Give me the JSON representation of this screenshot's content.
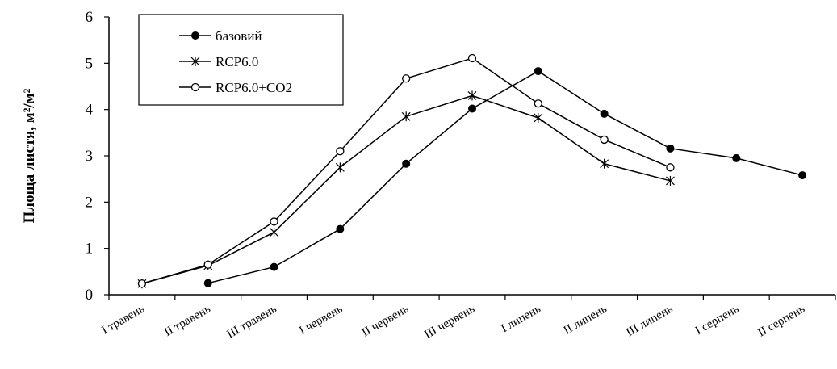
{
  "chart_data": {
    "type": "line",
    "ylabel": "Площа листя, м²/м²",
    "xlabel": "",
    "ylim": [
      0,
      6
    ],
    "yticks": [
      0,
      1,
      2,
      3,
      4,
      5,
      6
    ],
    "grid": false,
    "legend_position": "top-left",
    "categories": [
      "I травень",
      "II травень",
      "III травень",
      "I червень",
      "II червень",
      "III червень",
      "I липень",
      "II липень",
      "III липень",
      "I серпень",
      "II серпень"
    ],
    "series": [
      {
        "name": "базовий",
        "marker": "filled-circle",
        "color": "#000000",
        "values": [
          null,
          0.25,
          0.6,
          1.42,
          2.83,
          4.02,
          4.83,
          3.91,
          3.16,
          2.95,
          2.58
        ]
      },
      {
        "name": "RCP6.0",
        "marker": "asterisk",
        "color": "#000000",
        "values": [
          0.24,
          0.63,
          1.35,
          2.75,
          3.85,
          4.3,
          3.82,
          2.83,
          2.46,
          null,
          null
        ]
      },
      {
        "name": "RCP6.0+CO2",
        "marker": "open-circle",
        "color": "#000000",
        "values": [
          0.24,
          0.65,
          1.58,
          3.1,
          4.67,
          5.11,
          4.13,
          3.35,
          2.75,
          null,
          null
        ]
      }
    ]
  }
}
